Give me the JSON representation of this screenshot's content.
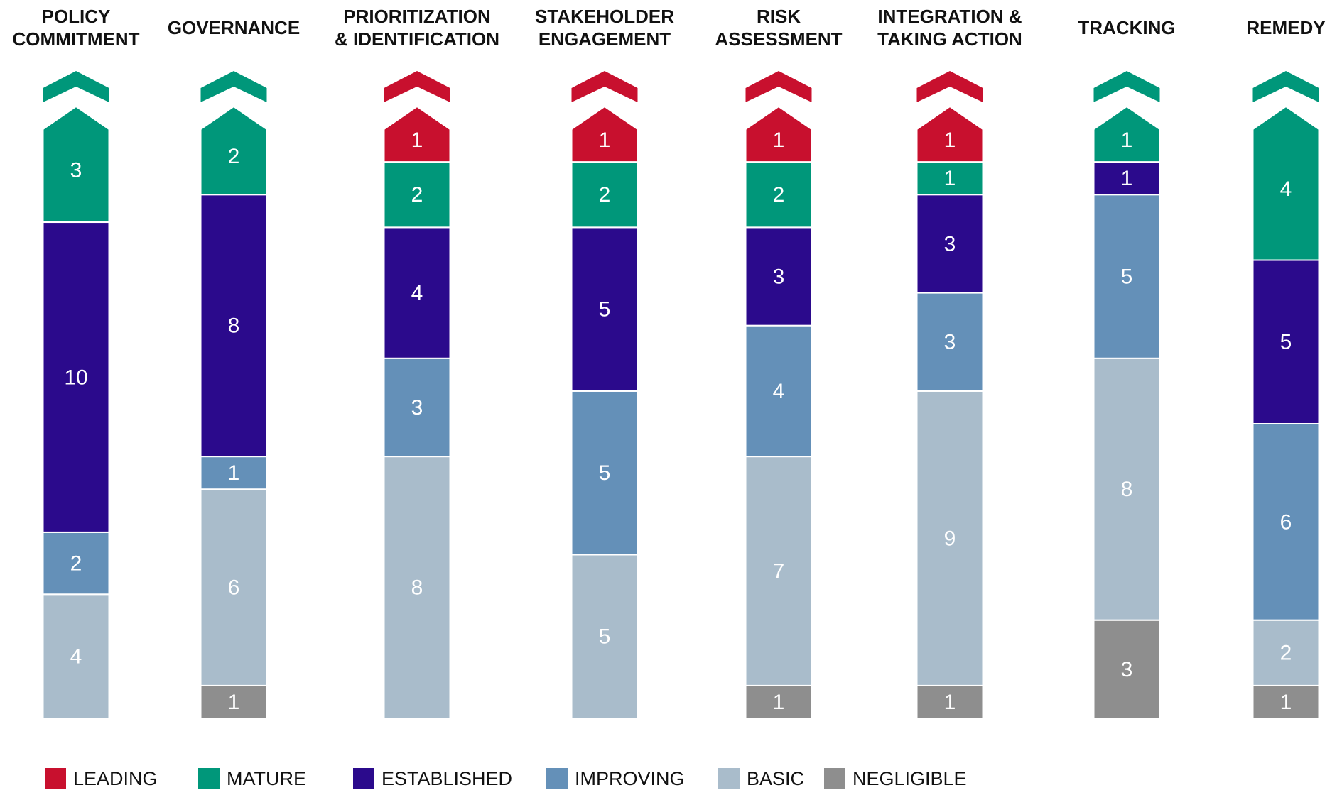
{
  "chart_data": {
    "type": "stacked-bar",
    "categories": [
      "POLICY\nCOMMITMENT",
      "GOVERNANCE",
      "PRIORITIZATION\n& IDENTIFICATION",
      "STAKEHOLDER\nENGAGEMENT",
      "RISK\nASSESSMENT",
      "INTEGRATION &\nTAKING ACTION",
      "TRACKING",
      "REMEDY"
    ],
    "series": [
      {
        "name": "LEADING",
        "color": "#c8102e",
        "values": [
          0,
          0,
          1,
          1,
          1,
          1,
          0,
          0
        ]
      },
      {
        "name": "MATURE",
        "color": "#00977a",
        "values": [
          3,
          2,
          2,
          2,
          2,
          1,
          1,
          4
        ]
      },
      {
        "name": "ESTABLISHED",
        "color": "#2b0a8c",
        "values": [
          10,
          8,
          4,
          5,
          3,
          3,
          1,
          5
        ]
      },
      {
        "name": "IMPROVING",
        "color": "#6490b8",
        "values": [
          2,
          1,
          3,
          5,
          4,
          3,
          5,
          6
        ]
      },
      {
        "name": "BASIC",
        "color": "#a9bccb",
        "values": [
          4,
          6,
          8,
          5,
          7,
          9,
          8,
          2
        ]
      },
      {
        "name": "NEGLIGIBLE",
        "color": "#8e8e8e",
        "values": [
          0,
          1,
          0,
          0,
          1,
          1,
          3,
          1
        ]
      }
    ]
  }
}
